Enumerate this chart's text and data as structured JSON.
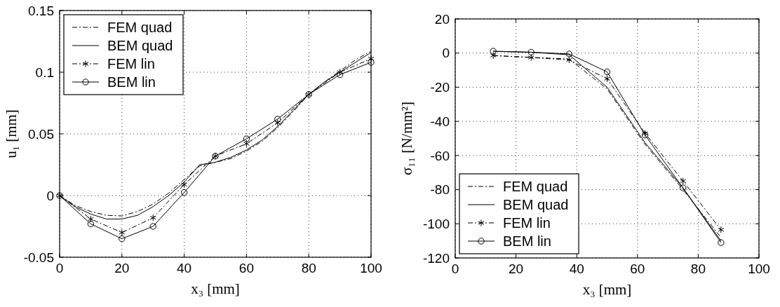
{
  "chart_data": [
    {
      "type": "line",
      "xlabel": "x₃ [mm]",
      "ylabel": "u₁ [mm]",
      "xlim": [
        0,
        100
      ],
      "xticks": [
        0,
        20,
        40,
        60,
        80,
        100
      ],
      "ylim": [
        -0.05,
        0.15
      ],
      "yticks": [
        -0.05,
        0,
        0.05,
        0.1,
        0.15
      ],
      "grid": true,
      "legend": "top left",
      "series": [
        {
          "name": "FEM quad",
          "color": "#000000",
          "line_style": "dashed",
          "marker": "none",
          "x": [
            0,
            5,
            10,
            15,
            20,
            25,
            30,
            35,
            40,
            45,
            50,
            55,
            60,
            65,
            70,
            75,
            80,
            85,
            90,
            95,
            100
          ],
          "values": [
            0,
            -0.008,
            -0.013,
            -0.016,
            -0.0165,
            -0.013,
            -0.007,
            0.002,
            0.013,
            0.024,
            0.027,
            0.03,
            0.036,
            0.044,
            0.055,
            0.068,
            0.082,
            0.092,
            0.101,
            0.11,
            0.117
          ]
        },
        {
          "name": "BEM quad",
          "color": "#000000",
          "line_style": "solid",
          "marker": "none",
          "x": [
            0,
            5,
            10,
            15,
            20,
            25,
            30,
            35,
            40,
            45,
            50,
            55,
            60,
            65,
            70,
            75,
            80,
            85,
            90,
            95,
            100
          ],
          "values": [
            0,
            -0.009,
            -0.015,
            -0.019,
            -0.019,
            -0.016,
            -0.009,
            0,
            0.011,
            0.025,
            0.027,
            0.031,
            0.037,
            0.045,
            0.056,
            0.069,
            0.082,
            0.092,
            0.1,
            0.108,
            0.116
          ]
        },
        {
          "name": "FEM lin",
          "color": "#000000",
          "line_style": "dashed",
          "marker": "cross",
          "x": [
            0,
            10,
            20,
            30,
            40,
            50,
            60,
            70,
            80,
            90,
            100
          ],
          "values": [
            0,
            -0.019,
            -0.03,
            -0.018,
            0.009,
            0.032,
            0.042,
            0.059,
            0.082,
            0.1,
            0.111
          ]
        },
        {
          "name": "BEM lin",
          "color": "#000000",
          "line_style": "solid",
          "marker": "circle",
          "x": [
            0,
            10,
            20,
            30,
            40,
            50,
            60,
            70,
            80,
            90,
            100
          ],
          "values": [
            0,
            -0.023,
            -0.035,
            -0.025,
            0.0025,
            0.032,
            0.046,
            0.062,
            0.082,
            0.098,
            0.108
          ]
        }
      ]
    },
    {
      "type": "line",
      "xlabel": "x₃ [mm]",
      "ylabel": "σ₁₁ [N/mm²]",
      "xlim": [
        0,
        100
      ],
      "xticks": [
        0,
        20,
        40,
        60,
        80,
        100
      ],
      "ylim": [
        -120,
        20
      ],
      "yticks": [
        -120,
        -100,
        -80,
        -60,
        -40,
        -20,
        0,
        20
      ],
      "grid": true,
      "legend": "bottom left",
      "series": [
        {
          "name": "FEM quad",
          "color": "#000000",
          "line_style": "dashed",
          "marker": "none",
          "x": [
            12.5,
            25,
            37.5,
            50,
            62.5,
            75,
            87.5
          ],
          "values": [
            -1.5,
            -2.5,
            -3.5,
            -21,
            -53.5,
            -80,
            -108
          ]
        },
        {
          "name": "BEM quad",
          "color": "#000000",
          "line_style": "solid",
          "marker": "none",
          "x": [
            12.5,
            25,
            37.5,
            50,
            62.5,
            75,
            87.5
          ],
          "values": [
            1,
            0.5,
            -1,
            -20,
            -52.5,
            -79,
            -110
          ]
        },
        {
          "name": "FEM lin",
          "color": "#000000",
          "line_style": "dashed",
          "marker": "cross",
          "x": [
            12.5,
            25,
            37.5,
            50,
            62.5,
            75,
            87.5
          ],
          "values": [
            -1.4,
            -2.6,
            -4,
            -15,
            -47,
            -75,
            -103.5
          ]
        },
        {
          "name": "BEM lin",
          "color": "#000000",
          "line_style": "solid",
          "marker": "circle",
          "x": [
            12.5,
            25,
            37.5,
            50,
            62.5,
            75,
            87.5
          ],
          "values": [
            1.1,
            0.5,
            -0.5,
            -11,
            -48,
            -79,
            -111
          ]
        }
      ]
    }
  ]
}
